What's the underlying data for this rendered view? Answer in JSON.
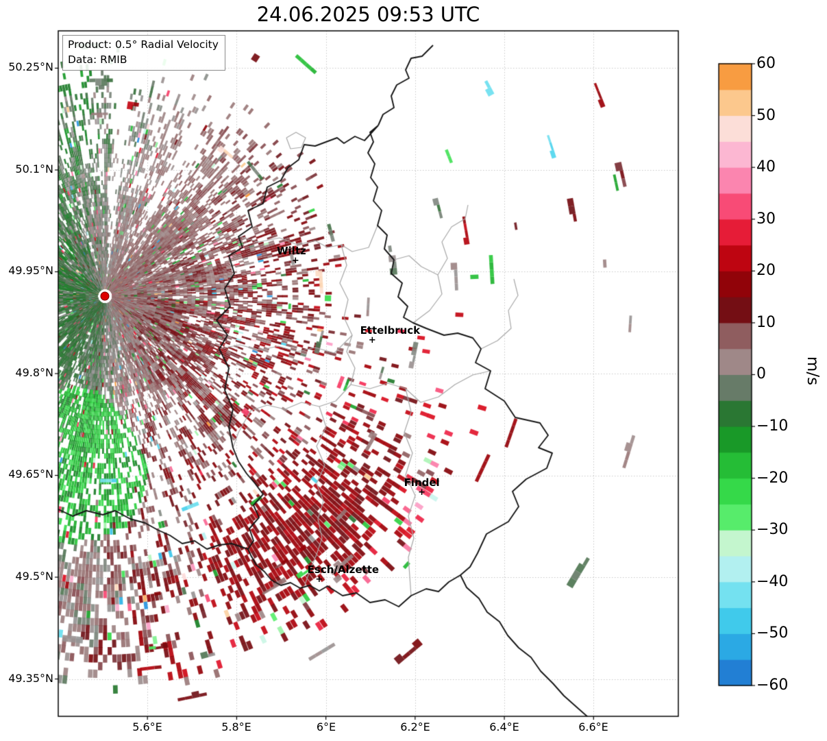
{
  "title": "24.06.2025 09:53 UTC",
  "product_box": {
    "line1": "Product: 0.5° Radial Velocity",
    "line2": "Data: RMIB"
  },
  "axis": {
    "x_ticks": [
      "5.6°E",
      "5.8°E",
      "6°E",
      "6.2°E",
      "6.4°E",
      "6.6°E"
    ],
    "x_tick_values": [
      5.6,
      5.8,
      6.0,
      6.2,
      6.4,
      6.6
    ],
    "y_ticks": [
      "50.25°N",
      "50.1°N",
      "49.95°N",
      "49.8°N",
      "49.65°N",
      "49.5°N",
      "49.35°N"
    ],
    "y_tick_values": [
      50.25,
      50.1,
      49.95,
      49.8,
      49.65,
      49.5,
      49.35
    ]
  },
  "colorbar": {
    "label": "m/s",
    "ticks": [
      "60",
      "50",
      "40",
      "30",
      "20",
      "10",
      "0",
      "−10",
      "−20",
      "−30",
      "−40",
      "−50",
      "−60"
    ],
    "tick_values": [
      60,
      50,
      40,
      30,
      20,
      10,
      0,
      -10,
      -20,
      -30,
      -40,
      -50,
      -60
    ],
    "segment_step": 5
  },
  "cities": [
    {
      "name": "Wiltz",
      "marker": "+",
      "lon": 5.932,
      "lat": 49.966
    },
    {
      "name": "Ettelbruck",
      "marker": "+",
      "lon": 6.104,
      "lat": 49.848
    },
    {
      "name": "Findel",
      "marker": "+",
      "lon": 6.215,
      "lat": 49.624
    },
    {
      "name": "Esch/Alzette",
      "marker": "+",
      "lon": 5.985,
      "lat": 49.496
    }
  ],
  "radar": {
    "lon": 5.505,
    "lat": 49.914
  },
  "chart_data": {
    "type": "heatmap",
    "subtype": "doppler-radar-ppi-radial-velocity",
    "title": "24.06.2025 09:53 UTC",
    "product": "0.5° Radial Velocity",
    "source": "RMIB",
    "units": "m/s",
    "value_range": [
      -60,
      60
    ],
    "extent": {
      "lon_min": 5.4,
      "lon_max": 6.79,
      "lat_min": 49.295,
      "lat_max": 50.305
    },
    "radar_site": {
      "lon": 5.505,
      "lat": 49.914,
      "marker": "red dot"
    },
    "gridlines": "dotted gray at each tick",
    "map_layers": [
      "national borders (black): Luxembourg / Belgium / Germany / France",
      "district borders (gray)"
    ],
    "field_summary": [
      {
        "region": "west and southwest of radar",
        "velocity_m_s": "-25 to 0",
        "appearance": "green shades, flow toward radar, dense"
      },
      {
        "region": "north and northeast of radar",
        "velocity_m_s": "-5 to +10",
        "appearance": "gray and maroon streaks"
      },
      {
        "region": "east toward Wiltz/Ettelbruck",
        "velocity_m_s": "+5 to +20",
        "appearance": "dark red streaks over gray"
      },
      {
        "region": "southeast near Esch/Alzette",
        "velocity_m_s": "+10 to +22",
        "appearance": "dense dark red maximum"
      },
      {
        "region": "far range, east of ~6.2°E",
        "velocity_m_s": "mixed isolated echoes",
        "appearance": "sparse specks of gray, dark red, green, pink"
      }
    ],
    "colormap_stops": [
      [
        -60,
        "#1c68c8"
      ],
      [
        -55,
        "#2896e0"
      ],
      [
        -50,
        "#2ebce8"
      ],
      [
        -45,
        "#52d8ee"
      ],
      [
        -40,
        "#96eaf2"
      ],
      [
        -35,
        "#cdf6ee"
      ],
      [
        -32,
        "#c2f6c8"
      ],
      [
        -28,
        "#5aee6e"
      ],
      [
        -22,
        "#32d746"
      ],
      [
        -15,
        "#1eaf2d"
      ],
      [
        -10,
        "#148223"
      ],
      [
        -6,
        "#37703c"
      ],
      [
        -2,
        "#6e7d6e"
      ],
      [
        0,
        "#969696"
      ],
      [
        2,
        "#a08c8c"
      ],
      [
        6,
        "#966e6e"
      ],
      [
        9,
        "#874b50"
      ],
      [
        11,
        "#6e141a"
      ],
      [
        15,
        "#7d050a"
      ],
      [
        20,
        "#a50008"
      ],
      [
        25,
        "#d70a19"
      ],
      [
        30,
        "#f52d55"
      ],
      [
        35,
        "#fa6996"
      ],
      [
        40,
        "#fca0c8"
      ],
      [
        45,
        "#fccddc"
      ],
      [
        48,
        "#fce1d7"
      ],
      [
        52,
        "#fccd96"
      ],
      [
        56,
        "#faa550"
      ],
      [
        60,
        "#f58c28"
      ]
    ]
  }
}
